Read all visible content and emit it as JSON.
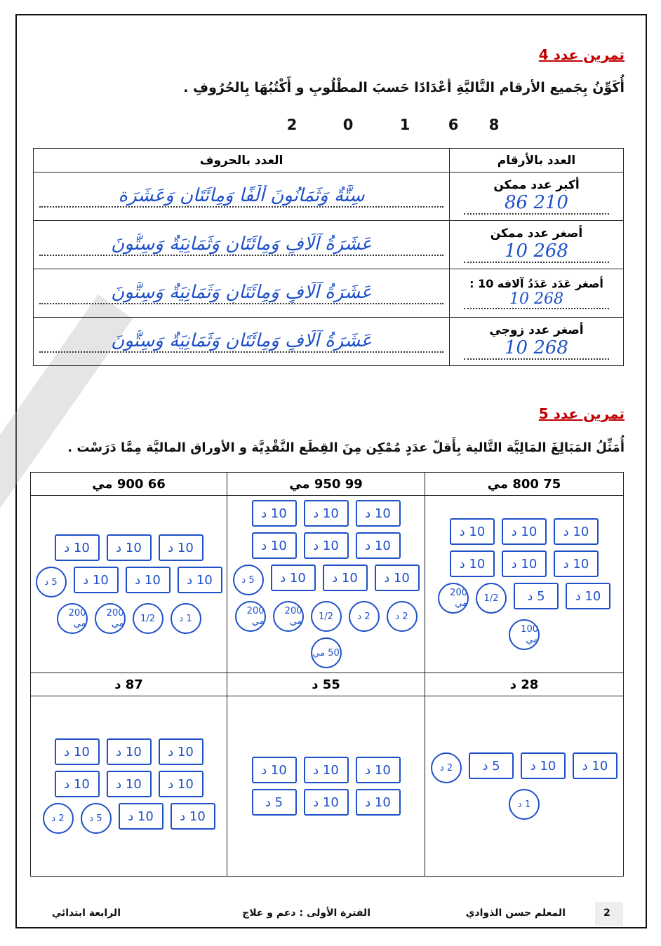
{
  "ex4": {
    "title": "تمرين عدد 4",
    "instruction": "أُكَوِّنُ بِجَميع الأرقام التَّاليَّةِ أعْدَادًا حَسبَ المطْلُوبِ و أَكْتُبُهَا بِالحُرُوفِ .",
    "digits": [
      "2",
      "0",
      "1",
      "6",
      "8"
    ],
    "headers": {
      "digits": "العدد بالأرقام",
      "words": "العدد بالحروف"
    },
    "rows": [
      {
        "label": "أكبر عدد ممكن",
        "number": "86 210",
        "words": "سِتَّةٌ وَثَمَانُونَ أَلْفًا وَمِائَتَانِ وَعَشَرَة"
      },
      {
        "label": "أصغر عدد ممكن",
        "number": "10 268",
        "words": "عَشَرَةُ آلَافٍ وَمِائَتَانِ وَثَمَانِيَةٌ وَسِتُّونَ"
      },
      {
        "label": "أصغر عَدَد عَدَدُ آلافه 10 :",
        "number": "10 268",
        "words": "عَشَرَةُ آلَافٍ وَمِائَتَانِ وَثَمَانِيَةٌ وَسِتُّونَ"
      },
      {
        "label": "أصغر عدد زوجي",
        "number": "10 268",
        "words": "عَشَرَةُ آلَافٍ وَمِائَتَانِ وَثَمَانِيَةٌ وَسِتُّونَ"
      }
    ]
  },
  "ex5": {
    "title": "تمرين عدد 5",
    "instruction": "أُمَثِّلُ المَبَالِغَ المَالِيَّة التَّالية بِأَقلّ عدَدٍ مُمْكِن مِنَ القِطَع النَّقْدِيَّة و الأوراق الماليَّة مِمَّا دَرَسْت .",
    "amounts": [
      {
        "label": "75 800 مي",
        "tokens": [
          [
            "note",
            "10 د"
          ],
          [
            "note",
            "10 د"
          ],
          [
            "note",
            "10 د"
          ],
          [
            "note",
            "10 د"
          ],
          [
            "note",
            "10 د"
          ],
          [
            "note",
            "10 د"
          ],
          [
            "note",
            "10 د"
          ],
          [
            "note",
            "5 د"
          ],
          [
            "coin",
            "1/2"
          ],
          [
            "coin",
            "200 مي"
          ],
          [
            "coin",
            "100 مي"
          ]
        ]
      },
      {
        "label": "99 950 مي",
        "tokens": [
          [
            "note",
            "10 د"
          ],
          [
            "note",
            "10 د"
          ],
          [
            "note",
            "10 د"
          ],
          [
            "note",
            "10 د"
          ],
          [
            "note",
            "10 د"
          ],
          [
            "note",
            "10 د"
          ],
          [
            "note",
            "10 د"
          ],
          [
            "note",
            "10 د"
          ],
          [
            "note",
            "10 د"
          ],
          [
            "coin",
            "5 د"
          ],
          [
            "coin",
            "2 د"
          ],
          [
            "coin",
            "2 د"
          ],
          [
            "coin",
            "1/2"
          ],
          [
            "coin",
            "200 مي"
          ],
          [
            "coin",
            "200 مي"
          ],
          [
            "coin",
            "50 مي"
          ]
        ]
      },
      {
        "label": "66 900 مي",
        "tokens": [
          [
            "note",
            "10 د"
          ],
          [
            "note",
            "10 د"
          ],
          [
            "note",
            "10 د"
          ],
          [
            "note",
            "10 د"
          ],
          [
            "note",
            "10 د"
          ],
          [
            "note",
            "10 د"
          ],
          [
            "coin",
            "5 د"
          ],
          [
            "coin",
            "1 د"
          ],
          [
            "coin",
            "1/2"
          ],
          [
            "coin",
            "200 مي"
          ],
          [
            "coin",
            "200 مي"
          ]
        ]
      },
      {
        "label": "28 د",
        "tokens": [
          [
            "note",
            "10 د"
          ],
          [
            "note",
            "10 د"
          ],
          [
            "note",
            "5 د"
          ],
          [
            "coin",
            "2 د"
          ],
          [
            "coin",
            "1 د"
          ]
        ]
      },
      {
        "label": "55 د",
        "tokens": [
          [
            "note",
            "10 د"
          ],
          [
            "note",
            "10 د"
          ],
          [
            "note",
            "10 د"
          ],
          [
            "note",
            "10 د"
          ],
          [
            "note",
            "10 د"
          ],
          [
            "note",
            "5 د"
          ]
        ]
      },
      {
        "label": "87 د",
        "tokens": [
          [
            "note",
            "10 د"
          ],
          [
            "note",
            "10 د"
          ],
          [
            "note",
            "10 د"
          ],
          [
            "note",
            "10 د"
          ],
          [
            "note",
            "10 د"
          ],
          [
            "note",
            "10 د"
          ],
          [
            "note",
            "10 د"
          ],
          [
            "note",
            "10 د"
          ],
          [
            "coin",
            "5 د"
          ],
          [
            "coin",
            "2 د"
          ]
        ]
      }
    ]
  },
  "footer": {
    "page": "2",
    "teacher": "المعلم حسن الذوادي",
    "period": "الفترة الأولى : دعم و علاج",
    "grade": "الرابعة ابتدائي"
  },
  "colors": {
    "title": "#c00000",
    "handwriting": "#1e50c8"
  }
}
